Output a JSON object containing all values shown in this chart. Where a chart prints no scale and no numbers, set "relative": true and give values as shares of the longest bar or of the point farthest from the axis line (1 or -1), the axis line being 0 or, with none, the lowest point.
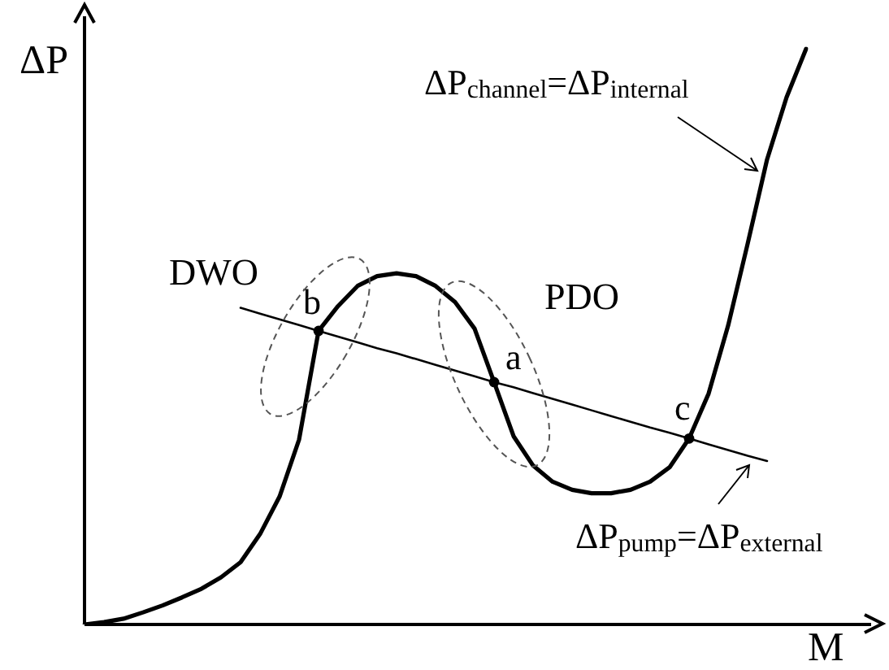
{
  "chart_data": {
    "type": "line",
    "relative": true,
    "xlabel": "M",
    "ylabel": "ΔP",
    "categories": [
      null,
      null,
      null,
      null,
      null,
      null,
      null,
      null,
      null,
      null,
      null,
      null,
      null,
      null,
      null,
      null,
      null,
      null,
      null,
      null,
      null,
      null,
      null,
      null,
      null,
      null,
      null,
      null,
      null,
      null,
      null,
      null,
      null,
      null,
      null,
      null,
      null,
      null
    ],
    "series": [
      {
        "color": "#000000",
        "values": [
          0,
          0.004,
          0.01,
          0.021,
          0.033,
          0.047,
          0.062,
          0.082,
          0.108,
          0.157,
          0.222,
          0.321,
          0.51,
          0.553,
          0.588,
          0.605,
          0.61,
          0.605,
          0.588,
          0.56,
          0.514,
          0.421,
          0.327,
          0.276,
          0.248,
          0.234,
          0.228,
          0.228,
          0.234,
          0.248,
          0.273,
          0.323,
          0.401,
          0.519,
          0.661,
          0.808,
          0.916,
          1
        ]
      },
      {
        "color": "#000000",
        "values": [
          null,
          null,
          null,
          null,
          null,
          null,
          null,
          null,
          0.55,
          0.54,
          0.53,
          0.52,
          0.51,
          0.5,
          0.49,
          0.48,
          0.471,
          0.461,
          0.451,
          0.441,
          0.431,
          0.421,
          0.412,
          0.402,
          0.392,
          0.382,
          0.372,
          0.362,
          0.352,
          0.342,
          0.333,
          0.323,
          0.313,
          0.303,
          0.293,
          0.284,
          null,
          null
        ]
      }
    ],
    "annotations": [
      "DWO",
      "PDO",
      "ΔP$_{channel}$=ΔP$_{internal}$",
      "ΔP$_{pump}$=ΔP$_{external}$",
      {
        "text": "b",
        "y": 0.51
      },
      {
        "text": "a",
        "y": 0.421
      },
      {
        "text": "c",
        "y": 0.323
      }
    ]
  }
}
